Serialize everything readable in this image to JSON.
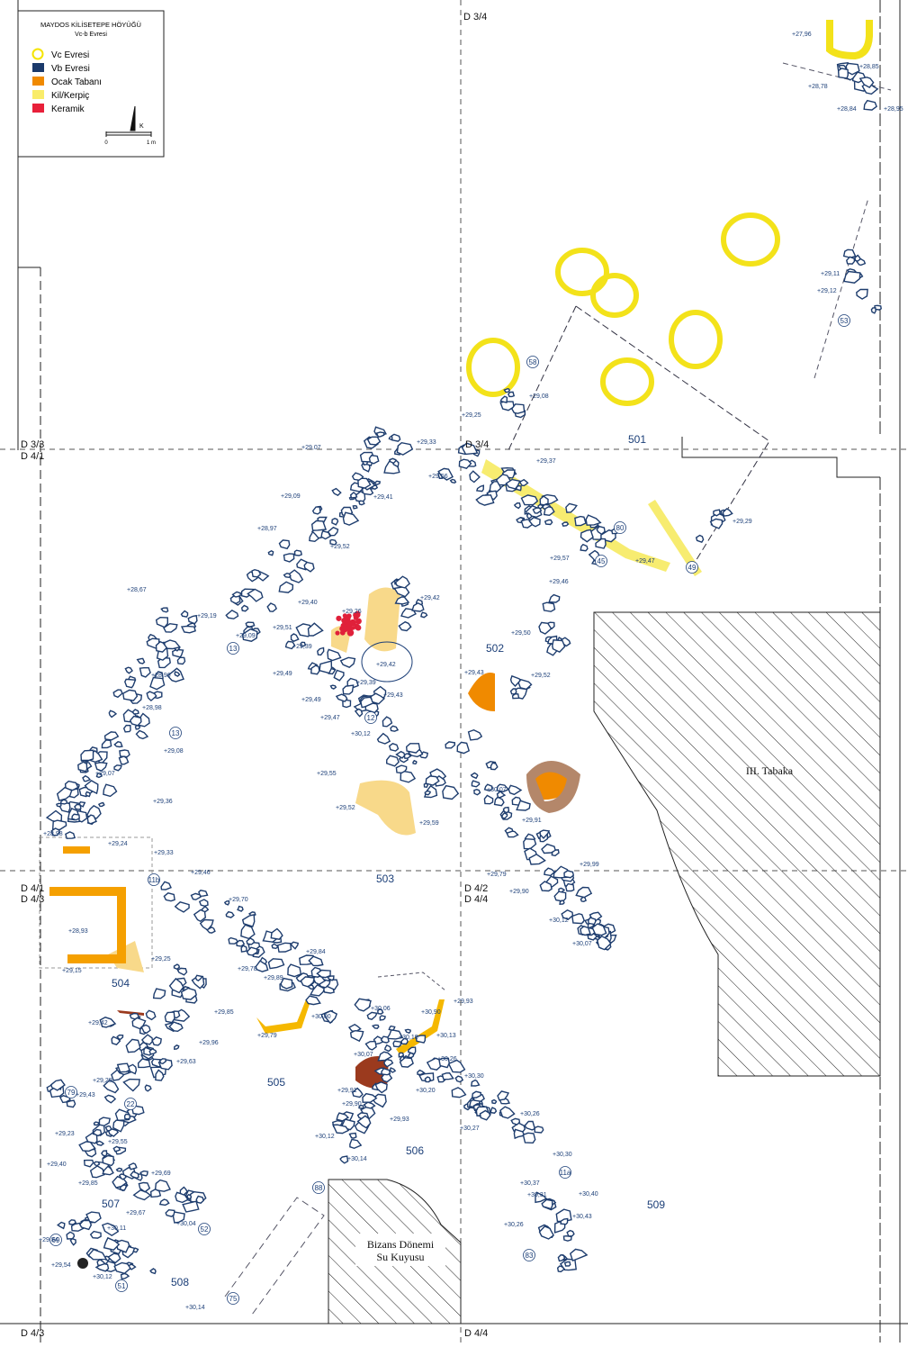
{
  "legend": {
    "title": "MAYDOS KİLİSETEPE HÖYÜĞÜ",
    "subtitle": "Vc-b Evresi",
    "items": [
      {
        "label": "Vc Evresi",
        "color": "#f5e400",
        "kind": "ring"
      },
      {
        "label": "Vb Evresi",
        "color": "#1b3a6b",
        "kind": "box"
      },
      {
        "label": "Ocak Tabanı",
        "color": "#f08a00",
        "kind": "box"
      },
      {
        "label": "Kil/Kerpiç",
        "color": "#f9ec6a",
        "kind": "box"
      },
      {
        "label": "Keramik",
        "color": "#e8203a",
        "kind": "box"
      }
    ],
    "north": "K",
    "scale_start": "0",
    "scale_end": "1 m"
  },
  "grid_labels": [
    "D 3/4",
    "D 3/3",
    "D 4/1",
    "D 3/4",
    "D 4/1",
    "D 4/3",
    "D 4/2",
    "D 4/4",
    "D 4/3",
    "D 4/4"
  ],
  "areas": [
    "501",
    "502",
    "503",
    "504",
    "505",
    "506",
    "507",
    "508",
    "509"
  ],
  "hatched": [
    "III. Tabaka",
    "Bizans Dönemi",
    "Su Kuyusu"
  ],
  "walls": [
    "13",
    "13",
    "12",
    "11b",
    "22",
    "79",
    "69",
    "51",
    "52",
    "75",
    "88",
    "83",
    "11a",
    "45",
    "49",
    "80",
    "58",
    "53"
  ],
  "elevations": [
    "+27,96",
    "+28,85",
    "+28,78",
    "+28,84",
    "+28,95",
    "+29,11",
    "+29,12",
    "+29,08",
    "+29,25",
    "+29,07",
    "+29,33",
    "+29,56",
    "+29,37",
    "+29,09",
    "+29,41",
    "+28,97",
    "+29,52",
    "+29,29",
    "+29,57",
    "+29,47",
    "+29,46",
    "+28,67",
    "+29,40",
    "+29,26",
    "+29,42",
    "+29,19",
    "+29,51",
    "+29,09",
    "+29,50",
    "+29,39",
    "+29,42",
    "+29,49",
    "+29,39",
    "+29,43",
    "+29,49",
    "+29,43",
    "+29,52",
    "+28,96",
    "+28,98",
    "+29,47",
    "+30,12",
    "+29,08",
    "+29,07",
    "+29,55",
    "+30,07",
    "+29,36",
    "+29,52",
    "+29,59",
    "+29,91",
    "+28,98",
    "+29,24",
    "+29,33",
    "+29,46",
    "+29,99",
    "+29,79",
    "+29,90",
    "+29,70",
    "+30,12",
    "+28,93",
    "+30,07",
    "+29,84",
    "+29,25",
    "+29,15",
    "+29,78",
    "+29,89",
    "+29,93",
    "+30,06",
    "+30,90",
    "+30,00",
    "+29,85",
    "+29,42",
    "+29,79",
    "+30,18",
    "+30,13",
    "+29,96",
    "+30,26",
    "+30,07",
    "+29,63",
    "+29,29",
    "+30,30",
    "+29,43",
    "+29,91",
    "+30,20",
    "+29,90",
    "+29,93",
    "+30,26",
    "+30,27",
    "+29,23",
    "+30,12",
    "+29,55",
    "+30,14",
    "+30,30",
    "+29,40",
    "+29,85",
    "+29,69",
    "+30,37",
    "+30,31",
    "+30,40",
    "+30,43",
    "+29,67",
    "+30,04",
    "+30,11",
    "+30,26",
    "+29,84",
    "+29,54",
    "+30,12",
    "+30,14"
  ]
}
